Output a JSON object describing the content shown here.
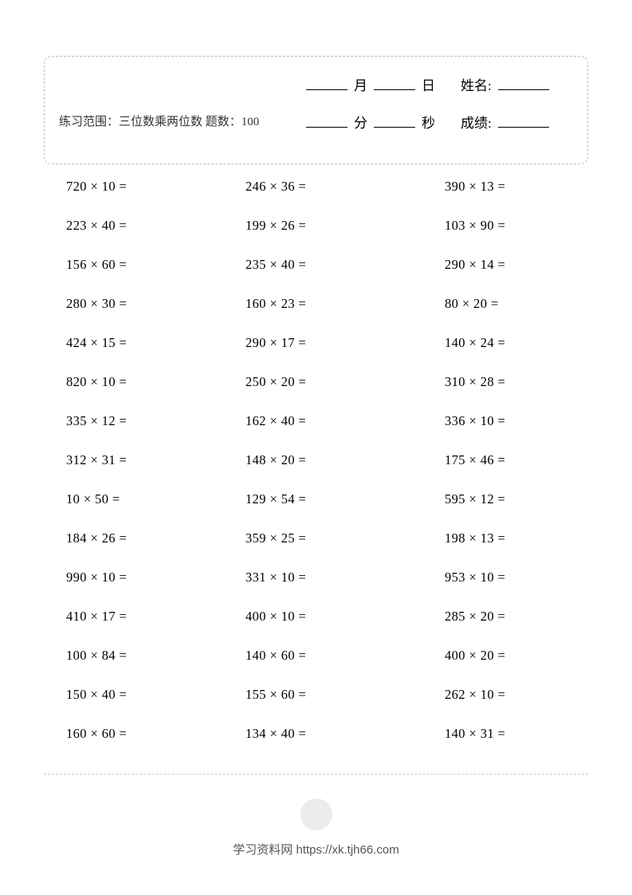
{
  "header": {
    "scope_label": "练习范围：三位数乘两位数  题数：100",
    "month_label": "月",
    "day_label": "日",
    "name_label": "姓名:",
    "minute_label": "分",
    "second_label": "秒",
    "score_label": "成绩:"
  },
  "problems": [
    [
      "720 × 10 =",
      "246 × 36 =",
      "390 × 13 ="
    ],
    [
      "223 × 40 =",
      "199 × 26 =",
      "103 × 90 ="
    ],
    [
      "156 × 60 =",
      "235 × 40 =",
      "290 × 14 ="
    ],
    [
      "280 × 30 =",
      "160 × 23 =",
      "80 × 20 ="
    ],
    [
      "424 × 15 =",
      "290 × 17 =",
      "140 × 24 ="
    ],
    [
      "820 × 10 =",
      "250 × 20 =",
      "310 × 28 ="
    ],
    [
      "335 × 12 =",
      "162 × 40 =",
      "336 × 10 ="
    ],
    [
      "312 × 31 =",
      "148 × 20 =",
      "175 × 46 ="
    ],
    [
      "10 × 50 =",
      "129 × 54 =",
      "595 × 12 ="
    ],
    [
      "184 × 26 =",
      "359 × 25 =",
      "198 × 13 ="
    ],
    [
      "990 × 10 =",
      "331 × 10 =",
      "953 × 10 ="
    ],
    [
      "410 × 17 =",
      "400 × 10 =",
      "285 × 20 ="
    ],
    [
      "100 × 84 =",
      "140 × 60 =",
      "400 × 20 ="
    ],
    [
      "150 × 40 =",
      "155 × 60 =",
      "262 × 10 ="
    ],
    [
      "160 × 60 =",
      "134 × 40 =",
      "140 × 31 ="
    ]
  ],
  "footer": {
    "text": "学习资料网 https://xk.tjh66.com"
  },
  "style": {
    "page_bg": "#ffffff",
    "text_color": "#000000",
    "border_dash_color": "#bfbfbf",
    "divider_color": "#cfcfcf",
    "footer_dot_color": "#ececec",
    "problem_fontsize": 16.5,
    "header_fontsize": 17,
    "scope_fontsize": 15,
    "row_gap": 29
  }
}
